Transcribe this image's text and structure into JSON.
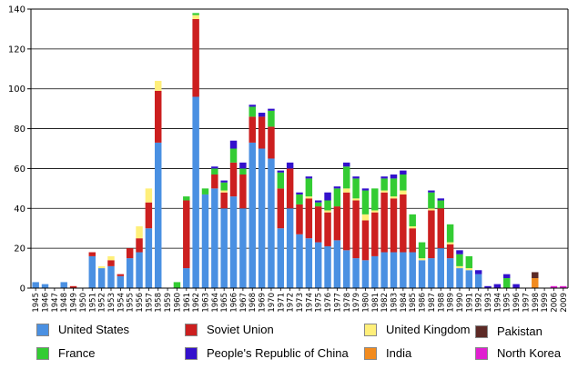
{
  "chart_data": {
    "type": "bar",
    "stacked": true,
    "title": "",
    "xlabel": "",
    "ylabel": "",
    "ylim": [
      0,
      140
    ],
    "yticks": [
      0,
      20,
      40,
      60,
      80,
      100,
      120,
      140
    ],
    "grid": true,
    "legend_position": "bottom",
    "categories": [
      "1945",
      "1946",
      "1947",
      "1948",
      "1949",
      "1950",
      "1951",
      "1952",
      "1953",
      "1954",
      "1955",
      "1956",
      "1957",
      "1958",
      "1959",
      "1960",
      "1961",
      "1962",
      "1963",
      "1964",
      "1965",
      "1966",
      "1967",
      "1968",
      "1969",
      "1970",
      "1971",
      "1972",
      "1973",
      "1974",
      "1975",
      "1976",
      "1977",
      "1978",
      "1979",
      "1980",
      "1981",
      "1982",
      "1983",
      "1984",
      "1985",
      "1986",
      "1987",
      "1988",
      "1989",
      "1990",
      "1991",
      "1992",
      "1993",
      "1994",
      "1995",
      "1996",
      "1997",
      "1998",
      "1999",
      "2006",
      "2009"
    ],
    "series": [
      {
        "name": "United States",
        "color": "#4a90e2",
        "values": [
          3,
          2,
          0,
          3,
          0,
          0,
          16,
          10,
          11,
          6,
          15,
          18,
          30,
          73,
          0,
          0,
          10,
          96,
          47,
          50,
          40,
          46,
          40,
          73,
          70,
          65,
          30,
          40,
          27,
          25,
          23,
          21,
          24,
          19,
          15,
          14,
          16,
          18,
          18,
          18,
          18,
          14,
          15,
          20,
          15,
          10,
          9,
          7,
          0,
          0,
          0,
          0,
          0,
          0,
          0,
          0,
          0
        ]
      },
      {
        "name": "Soviet Union",
        "color": "#cc1f1f",
        "values": [
          0,
          0,
          0,
          0,
          1,
          0,
          2,
          0,
          3,
          1,
          5,
          7,
          13,
          26,
          0,
          0,
          34,
          39,
          0,
          7,
          8,
          17,
          17,
          13,
          16,
          16,
          20,
          20,
          15,
          20,
          18,
          17,
          17,
          29,
          29,
          20,
          22,
          30,
          27,
          29,
          12,
          0,
          24,
          20,
          7,
          0,
          0,
          0,
          0,
          0,
          0,
          0,
          0,
          0,
          0,
          0,
          0
        ]
      },
      {
        "name": "United Kingdom",
        "color": "#ffef7a",
        "values": [
          0,
          0,
          0,
          0,
          0,
          0,
          0,
          1,
          2,
          0,
          0,
          6,
          7,
          5,
          0,
          0,
          0,
          2,
          0,
          0,
          1,
          0,
          0,
          0,
          0,
          0,
          0,
          0,
          0,
          1,
          0,
          1,
          0,
          2,
          1,
          3,
          1,
          1,
          1,
          2,
          1,
          1,
          1,
          0,
          1,
          1,
          1,
          0,
          0,
          0,
          0,
          0,
          0,
          0,
          0,
          0,
          0
        ]
      },
      {
        "name": "France",
        "color": "#33cc33",
        "values": [
          0,
          0,
          0,
          0,
          0,
          0,
          0,
          0,
          0,
          0,
          0,
          0,
          0,
          0,
          0,
          3,
          2,
          1,
          3,
          3,
          4,
          7,
          3,
          5,
          0,
          8,
          8,
          0,
          5,
          9,
          2,
          5,
          9,
          11,
          10,
          12,
          11,
          6,
          9,
          8,
          6,
          8,
          8,
          4,
          9,
          6,
          6,
          0,
          0,
          0,
          5,
          0,
          0,
          0,
          0,
          0,
          0
        ]
      },
      {
        "name": "People's Republic of China",
        "color": "#3311cc",
        "values": [
          0,
          0,
          0,
          0,
          0,
          0,
          0,
          0,
          0,
          0,
          0,
          0,
          0,
          0,
          0,
          0,
          0,
          0,
          0,
          1,
          1,
          4,
          3,
          1,
          2,
          1,
          1,
          3,
          1,
          1,
          1,
          4,
          1,
          2,
          1,
          1,
          0,
          1,
          2,
          2,
          0,
          0,
          1,
          1,
          0,
          2,
          0,
          2,
          1,
          2,
          2,
          2,
          0,
          0,
          0,
          0,
          0
        ]
      },
      {
        "name": "India",
        "color": "#f28b1e",
        "values": [
          0,
          0,
          0,
          0,
          0,
          0,
          0,
          0,
          0,
          0,
          0,
          0,
          0,
          0,
          0,
          0,
          0,
          0,
          0,
          0,
          0,
          0,
          0,
          0,
          0,
          0,
          0,
          0,
          0,
          0,
          0,
          0,
          0,
          0,
          0,
          0,
          0,
          0,
          0,
          0,
          0,
          0,
          0,
          0,
          0,
          0,
          0,
          0,
          0,
          0,
          0,
          0,
          0,
          5,
          0,
          0,
          0
        ]
      },
      {
        "name": "Pakistan",
        "color": "#5c2a26",
        "values": [
          0,
          0,
          0,
          0,
          0,
          0,
          0,
          0,
          0,
          0,
          0,
          0,
          0,
          0,
          0,
          0,
          0,
          0,
          0,
          0,
          0,
          0,
          0,
          0,
          0,
          0,
          0,
          0,
          0,
          0,
          0,
          0,
          0,
          0,
          0,
          0,
          0,
          0,
          0,
          0,
          0,
          0,
          0,
          0,
          0,
          0,
          0,
          0,
          0,
          0,
          0,
          0,
          0,
          3,
          0,
          0,
          0
        ]
      },
      {
        "name": "North Korea",
        "color": "#e020d0",
        "values": [
          0,
          0,
          0,
          0,
          0,
          0,
          0,
          0,
          0,
          0,
          0,
          0,
          0,
          0,
          0,
          0,
          0,
          0,
          0,
          0,
          0,
          0,
          0,
          0,
          0,
          0,
          0,
          0,
          0,
          0,
          0,
          0,
          0,
          0,
          0,
          0,
          0,
          0,
          0,
          0,
          0,
          0,
          0,
          0,
          0,
          0,
          0,
          0,
          0,
          0,
          0,
          0,
          0,
          0,
          0,
          1,
          1
        ]
      }
    ]
  },
  "legend": {
    "items": [
      {
        "label": "United States",
        "color": "#4a90e2"
      },
      {
        "label": "Soviet Union",
        "color": "#cc1f1f"
      },
      {
        "label": "United Kingdom",
        "color": "#ffef7a"
      },
      {
        "label": "Pakistan",
        "color": "#5c2a26"
      },
      {
        "label": "France",
        "color": "#33cc33"
      },
      {
        "label": "People's Republic of China",
        "color": "#3311cc"
      },
      {
        "label": "India",
        "color": "#f28b1e"
      },
      {
        "label": "North Korea",
        "color": "#e020d0"
      }
    ]
  }
}
